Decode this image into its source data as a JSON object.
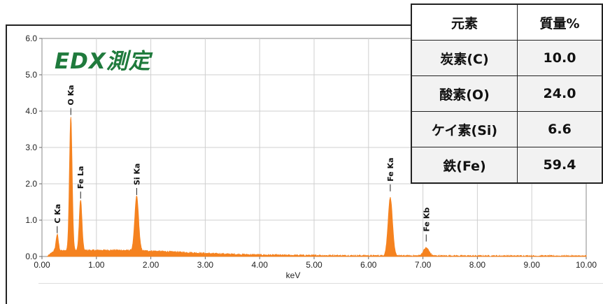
{
  "title": "EDX測定",
  "chart_data": {
    "type": "line",
    "title": "EDX測定",
    "xlabel": "keV",
    "ylabel": "",
    "xlim": [
      0,
      10
    ],
    "ylim": [
      0,
      6
    ],
    "x_ticks": [
      "0.00",
      "1.00",
      "2.00",
      "3.00",
      "4.00",
      "5.00",
      "6.00",
      "7.00",
      "8.00",
      "9.00",
      "10.00"
    ],
    "y_ticks": [
      "0.0",
      "1.0",
      "2.0",
      "3.0",
      "4.0",
      "5.0",
      "6.0"
    ],
    "grid": true,
    "color": "#f5821f",
    "peaks": [
      {
        "label": "C Ka",
        "x": 0.28,
        "y": 0.45
      },
      {
        "label": "O Ka",
        "x": 0.53,
        "y": 3.7
      },
      {
        "label": "Fe La",
        "x": 0.71,
        "y": 1.4
      },
      {
        "label": "Si Ka",
        "x": 1.74,
        "y": 1.5
      },
      {
        "label": "Fe Ka",
        "x": 6.4,
        "y": 1.6
      },
      {
        "label": "Fe Kb",
        "x": 7.06,
        "y": 0.22
      }
    ]
  },
  "table": {
    "headers": [
      "元素",
      "質量%"
    ],
    "rows": [
      {
        "element": "炭素(C)",
        "value": "10.0"
      },
      {
        "element": "酸素(O)",
        "value": "24.0"
      },
      {
        "element": "ケイ素(Si)",
        "value": "6.6"
      },
      {
        "element": "鉄(Fe)",
        "value": "59.4"
      }
    ]
  }
}
